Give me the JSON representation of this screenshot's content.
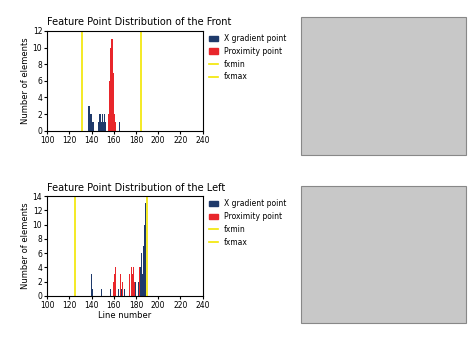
{
  "chart_data": [
    {
      "type": "bar",
      "title": "Feature Point Distribution of the Front",
      "y_label": "Number of elements",
      "xlim": [
        100,
        240
      ],
      "xticks": [
        100,
        120,
        140,
        160,
        180,
        200,
        220,
        240
      ],
      "ylim": [
        0,
        12
      ],
      "yticks": [
        0,
        2,
        4,
        6,
        8,
        10,
        12
      ],
      "legend": "upper left",
      "series": [
        {
          "name": "X gradient point",
          "color": "#1f3a6b",
          "x": [
            137,
            138,
            139,
            140,
            141,
            142,
            146,
            147,
            148,
            149,
            150,
            151,
            152,
            153,
            154,
            155,
            163,
            165
          ],
          "values": [
            3,
            3,
            2,
            2,
            1,
            1,
            1,
            2,
            2,
            1,
            2,
            1,
            2,
            1,
            3,
            2,
            1,
            1
          ]
        },
        {
          "name": "Proximity point",
          "color": "#e8262b",
          "x": [
            155,
            156,
            157,
            158,
            159,
            160,
            161,
            162
          ],
          "values": [
            2,
            6,
            10,
            11,
            11,
            7,
            2,
            1
          ]
        },
        {
          "name": "fxmin",
          "type": "vline",
          "color": "#f2e600",
          "x": [
            131
          ]
        },
        {
          "name": "fxmax",
          "type": "vline",
          "color": "#f2e600",
          "x": [
            185
          ]
        }
      ]
    },
    {
      "type": "bar",
      "title": "Feature Point Distribution of the Left",
      "x_label": "Line number",
      "y_label": "Number of elements",
      "xlim": [
        100,
        240
      ],
      "xticks": [
        100,
        120,
        140,
        160,
        180,
        200,
        220,
        240
      ],
      "ylim": [
        0,
        14
      ],
      "yticks": [
        0,
        2,
        4,
        6,
        8,
        10,
        12,
        14
      ],
      "legend": "upper left",
      "series": [
        {
          "name": "X gradient point",
          "color": "#1f3a6b",
          "x": [
            140,
            141,
            149,
            157,
            164,
            166,
            167,
            170,
            174,
            176,
            178,
            180,
            182,
            184,
            185,
            186,
            187,
            188,
            189,
            190
          ],
          "values": [
            3,
            1,
            1,
            1,
            1,
            1,
            1,
            1,
            1,
            1,
            3,
            2,
            2,
            4,
            6,
            3,
            7,
            10,
            13,
            3
          ]
        },
        {
          "name": "Proximity point",
          "color": "#e8262b",
          "x": [
            160,
            161,
            162,
            163,
            166,
            168,
            172,
            174,
            176,
            177,
            178,
            179,
            181,
            183
          ],
          "values": [
            2,
            3,
            4,
            3,
            3,
            2,
            2,
            3,
            4,
            3,
            4,
            2,
            3,
            4
          ]
        },
        {
          "name": "fxmin",
          "type": "vline",
          "color": "#f2e600",
          "x": [
            125
          ]
        },
        {
          "name": "fxmax",
          "type": "vline",
          "color": "#f2e600",
          "x": [
            190
          ]
        }
      ]
    }
  ]
}
